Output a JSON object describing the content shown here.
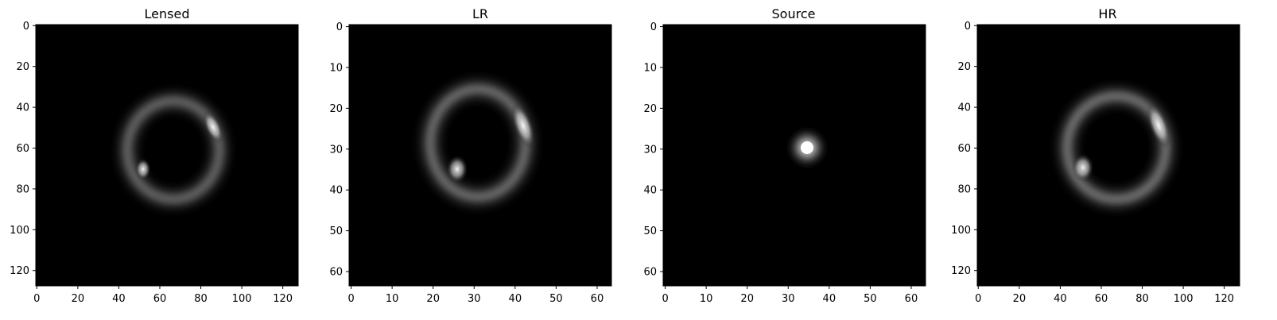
{
  "figure": {
    "panels": [
      {
        "title": "Lensed",
        "kind": "ring",
        "size": 128,
        "xticks": [
          0,
          20,
          40,
          60,
          80,
          100,
          120
        ],
        "yticks": [
          0,
          20,
          40,
          60,
          80,
          100,
          120
        ]
      },
      {
        "title": "LR",
        "kind": "ring",
        "size": 64,
        "xticks": [
          0,
          10,
          20,
          30,
          40,
          50,
          60
        ],
        "yticks": [
          0,
          10,
          20,
          30,
          40,
          50,
          60
        ]
      },
      {
        "title": "Source",
        "kind": "source",
        "size": 64,
        "xticks": [
          0,
          10,
          20,
          30,
          40,
          50,
          60
        ],
        "yticks": [
          0,
          10,
          20,
          30,
          40,
          50,
          60
        ]
      },
      {
        "title": "HR",
        "kind": "ring",
        "size": 128,
        "xticks": [
          0,
          20,
          40,
          60,
          80,
          100,
          120
        ],
        "yticks": [
          0,
          20,
          40,
          60,
          80,
          100,
          120
        ]
      }
    ],
    "colors": {
      "background": "#000000",
      "glow": "#ffffff",
      "axis": "#000000"
    }
  }
}
